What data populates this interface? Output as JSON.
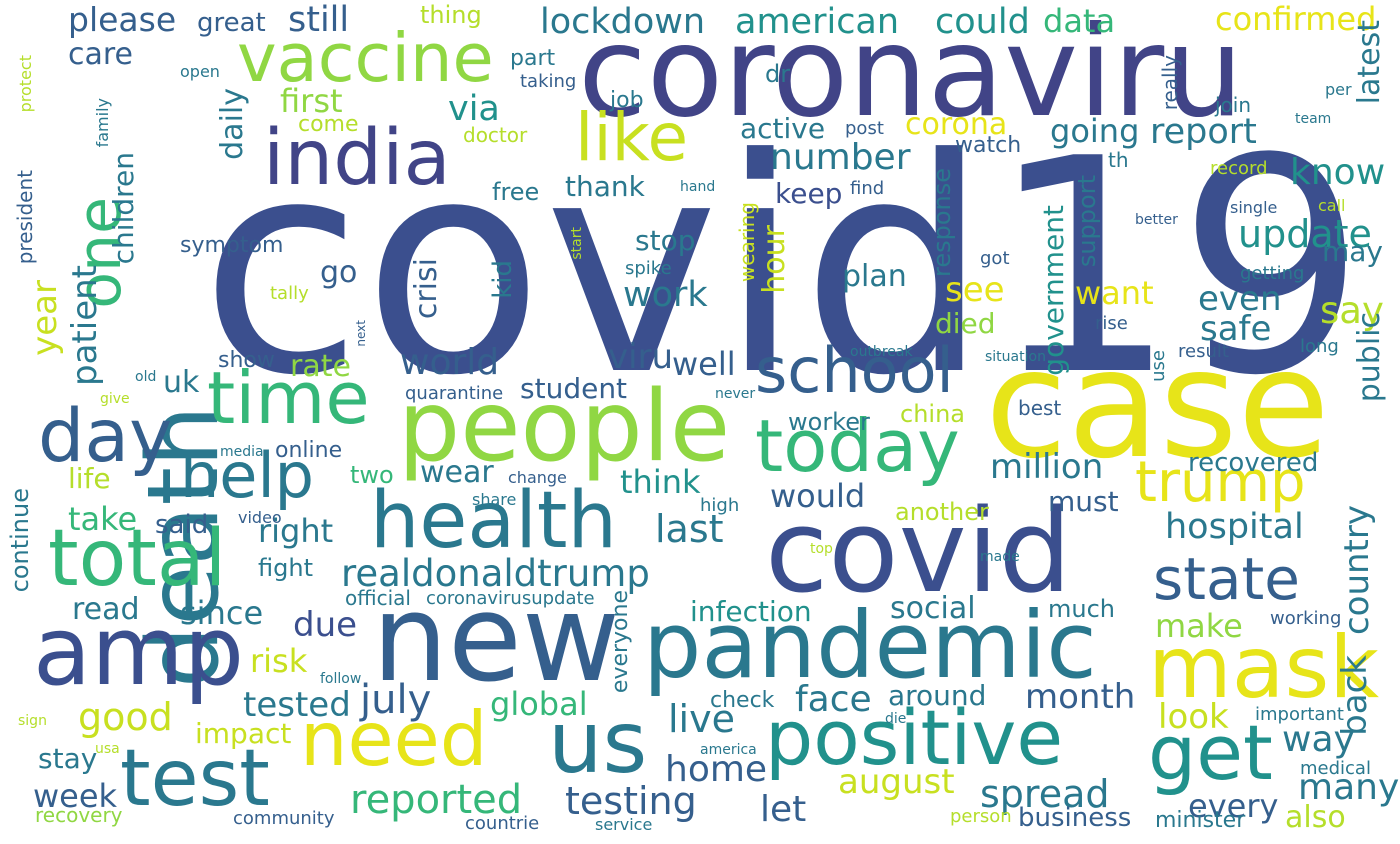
{
  "palette": {
    "navy": "#3b4f8e",
    "indigo": "#414487",
    "blue": "#355f8d",
    "teal": "#2a788e",
    "teal_green": "#21918c",
    "green": "#35b779",
    "lime": "#90d743",
    "yellow": "#e7e419"
  },
  "words": [
    {
      "id": "covid19",
      "text": "covid19",
      "color": "#3b4f8e"
    },
    {
      "id": "coronaviru",
      "text": "coronaviru",
      "color": "#414487"
    },
    {
      "id": "case",
      "text": "case",
      "color": "#e7e419"
    },
    {
      "id": "new",
      "text": "new",
      "color": "#355f8d"
    },
    {
      "id": "covid",
      "text": "covid",
      "color": "#3b4f8e"
    },
    {
      "id": "death",
      "text": "death",
      "color": "#2a788e"
    },
    {
      "id": "people",
      "text": "people",
      "color": "#90d743"
    },
    {
      "id": "pandemic",
      "text": "pandemic",
      "color": "#2a788e"
    },
    {
      "id": "amp",
      "text": "amp",
      "color": "#3b4f8e"
    },
    {
      "id": "positive",
      "text": "positive",
      "color": "#21918c"
    },
    {
      "id": "health",
      "text": "health",
      "color": "#2a788e"
    },
    {
      "id": "mask",
      "text": "mask",
      "color": "#e7e419"
    },
    {
      "id": "today",
      "text": "today",
      "color": "#35b779"
    },
    {
      "id": "india",
      "text": "india",
      "color": "#414487"
    },
    {
      "id": "time",
      "text": "time",
      "color": "#35b779"
    },
    {
      "id": "total",
      "text": "total",
      "color": "#35b779"
    },
    {
      "id": "us",
      "text": "us",
      "color": "#2a788e"
    },
    {
      "id": "need",
      "text": "need",
      "color": "#e7e419"
    },
    {
      "id": "test",
      "text": "test",
      "color": "#2a788e"
    },
    {
      "id": "get",
      "text": "get",
      "color": "#21918c"
    },
    {
      "id": "vaccine",
      "text": "vaccine",
      "color": "#90d743"
    },
    {
      "id": "like",
      "text": "like",
      "color": "#c8e020"
    },
    {
      "id": "school",
      "text": "school",
      "color": "#355f8d"
    },
    {
      "id": "day",
      "text": "day",
      "color": "#355f8d"
    },
    {
      "id": "one",
      "text": "one",
      "color": "#35b779"
    },
    {
      "id": "trump",
      "text": "trump",
      "color": "#e7e419"
    },
    {
      "id": "state",
      "text": "state",
      "color": "#355f8d"
    },
    {
      "id": "help",
      "text": "help",
      "color": "#2a788e"
    },
    {
      "id": "realdonaldtrump",
      "text": "realdonaldtrump",
      "color": "#2a788e"
    },
    {
      "id": "lockdown",
      "text": "lockdown",
      "color": "#2a788e"
    },
    {
      "id": "american",
      "text": "american",
      "color": "#21918c"
    },
    {
      "id": "please",
      "text": "please",
      "color": "#355f8d"
    },
    {
      "id": "still",
      "text": "still",
      "color": "#355f8d"
    },
    {
      "id": "could",
      "text": "could",
      "color": "#21918c"
    },
    {
      "id": "data",
      "text": "data",
      "color": "#35b779"
    },
    {
      "id": "confirmed",
      "text": "confirmed",
      "color": "#e7e419"
    },
    {
      "id": "great",
      "text": "great",
      "color": "#355f8d"
    },
    {
      "id": "thing",
      "text": "thing",
      "color": "#b5de2b"
    },
    {
      "id": "care",
      "text": "care",
      "color": "#355f8d"
    },
    {
      "id": "first",
      "text": "first",
      "color": "#90d743"
    },
    {
      "id": "via",
      "text": "via",
      "color": "#21918c"
    },
    {
      "id": "report",
      "text": "report",
      "color": "#2a788e"
    },
    {
      "id": "number",
      "text": "number",
      "color": "#2a788e"
    },
    {
      "id": "corona",
      "text": "corona",
      "color": "#e7e419"
    },
    {
      "id": "active",
      "text": "active",
      "color": "#2a788e"
    },
    {
      "id": "going",
      "text": "going",
      "color": "#2a788e"
    },
    {
      "id": "thank",
      "text": "thank",
      "color": "#2a788e"
    },
    {
      "id": "keep",
      "text": "keep",
      "color": "#3b4f8e"
    },
    {
      "id": "free",
      "text": "free",
      "color": "#2a788e"
    },
    {
      "id": "daily",
      "text": "daily",
      "color": "#2a788e"
    },
    {
      "id": "know",
      "text": "know",
      "color": "#21918c"
    },
    {
      "id": "update",
      "text": "update",
      "color": "#21918c"
    },
    {
      "id": "latest",
      "text": "latest",
      "color": "#2a788e"
    },
    {
      "id": "may",
      "text": "may",
      "color": "#2a788e"
    },
    {
      "id": "children",
      "text": "children",
      "color": "#2a788e"
    },
    {
      "id": "symptom",
      "text": "symptom",
      "color": "#355f8d"
    },
    {
      "id": "stop",
      "text": "stop",
      "color": "#2a788e"
    },
    {
      "id": "work",
      "text": "work",
      "color": "#2a788e"
    },
    {
      "id": "hour",
      "text": "hour",
      "color": "#c8e020"
    },
    {
      "id": "plan",
      "text": "plan",
      "color": "#2a788e"
    },
    {
      "id": "see",
      "text": "see",
      "color": "#e7e419"
    },
    {
      "id": "want",
      "text": "want",
      "color": "#e7e419"
    },
    {
      "id": "government",
      "text": "government",
      "color": "#21918c"
    },
    {
      "id": "support",
      "text": "support",
      "color": "#2a788e"
    },
    {
      "id": "even",
      "text": "even",
      "color": "#2a788e"
    },
    {
      "id": "say",
      "text": "say",
      "color": "#b5de2b"
    },
    {
      "id": "safe",
      "text": "safe",
      "color": "#2a788e"
    },
    {
      "id": "go",
      "text": "go",
      "color": "#355f8d"
    },
    {
      "id": "year",
      "text": "year",
      "color": "#c8e020"
    },
    {
      "id": "patient",
      "text": "patient",
      "color": "#2a788e"
    },
    {
      "id": "crisi",
      "text": "crisi",
      "color": "#355f8d"
    },
    {
      "id": "kid",
      "text": "kid",
      "color": "#2a788e"
    },
    {
      "id": "died",
      "text": "died",
      "color": "#90d743"
    },
    {
      "id": "world",
      "text": "world",
      "color": "#355f8d"
    },
    {
      "id": "viru",
      "text": "viru",
      "color": "#355f8d"
    },
    {
      "id": "well",
      "text": "well",
      "color": "#355f8d"
    },
    {
      "id": "rate",
      "text": "rate",
      "color": "#90d743"
    },
    {
      "id": "uk",
      "text": "uk",
      "color": "#2a788e"
    },
    {
      "id": "show",
      "text": "show",
      "color": "#355f8d"
    },
    {
      "id": "student",
      "text": "student",
      "color": "#355f8d"
    },
    {
      "id": "public",
      "text": "public",
      "color": "#2a788e"
    },
    {
      "id": "million",
      "text": "million",
      "color": "#2a788e"
    },
    {
      "id": "wear",
      "text": "wear",
      "color": "#2a788e"
    },
    {
      "id": "two",
      "text": "two",
      "color": "#35b779"
    },
    {
      "id": "think",
      "text": "think",
      "color": "#21918c"
    },
    {
      "id": "worker",
      "text": "worker",
      "color": "#2a788e"
    },
    {
      "id": "china",
      "text": "china",
      "color": "#b5de2b"
    },
    {
      "id": "recovered",
      "text": "recovered",
      "color": "#2a788e"
    },
    {
      "id": "best",
      "text": "best",
      "color": "#355f8d"
    },
    {
      "id": "online",
      "text": "online",
      "color": "#355f8d"
    },
    {
      "id": "life",
      "text": "life",
      "color": "#b5de2b"
    },
    {
      "id": "would",
      "text": "would",
      "color": "#355f8d"
    },
    {
      "id": "take",
      "text": "take",
      "color": "#35b779"
    },
    {
      "id": "said",
      "text": "said",
      "color": "#355f8d"
    },
    {
      "id": "right",
      "text": "right",
      "color": "#2a788e"
    },
    {
      "id": "last",
      "text": "last",
      "color": "#2a788e"
    },
    {
      "id": "must",
      "text": "must",
      "color": "#355f8d"
    },
    {
      "id": "another",
      "text": "another",
      "color": "#b5de2b"
    },
    {
      "id": "hospital",
      "text": "hospital",
      "color": "#2a788e"
    },
    {
      "id": "country",
      "text": "country",
      "color": "#2a788e"
    },
    {
      "id": "continue",
      "text": "continue",
      "color": "#2a788e"
    },
    {
      "id": "fight",
      "text": "fight",
      "color": "#2a788e"
    },
    {
      "id": "official",
      "text": "official",
      "color": "#2a788e"
    },
    {
      "id": "coronavirusupdate",
      "text": "coronavirusupdate",
      "color": "#2a788e"
    },
    {
      "id": "read",
      "text": "read",
      "color": "#2a788e"
    },
    {
      "id": "since",
      "text": "since",
      "color": "#2a788e"
    },
    {
      "id": "due",
      "text": "due",
      "color": "#3b4f8e"
    },
    {
      "id": "infection",
      "text": "infection",
      "color": "#21918c"
    },
    {
      "id": "social",
      "text": "social",
      "color": "#2a788e"
    },
    {
      "id": "much",
      "text": "much",
      "color": "#2a788e"
    },
    {
      "id": "make",
      "text": "make",
      "color": "#90d743"
    },
    {
      "id": "back",
      "text": "back",
      "color": "#2a788e"
    },
    {
      "id": "risk",
      "text": "risk",
      "color": "#c8e020"
    },
    {
      "id": "tested",
      "text": "tested",
      "color": "#2a788e"
    },
    {
      "id": "july",
      "text": "july",
      "color": "#355f8d"
    },
    {
      "id": "global",
      "text": "global",
      "color": "#35b779"
    },
    {
      "id": "face",
      "text": "face",
      "color": "#2a788e"
    },
    {
      "id": "around",
      "text": "around",
      "color": "#2a788e"
    },
    {
      "id": "month",
      "text": "month",
      "color": "#355f8d"
    },
    {
      "id": "good",
      "text": "good",
      "color": "#c8e020"
    },
    {
      "id": "impact",
      "text": "impact",
      "color": "#c8e020"
    },
    {
      "id": "live",
      "text": "live",
      "color": "#2a788e"
    },
    {
      "id": "look",
      "text": "look",
      "color": "#c8e020"
    },
    {
      "id": "way",
      "text": "way",
      "color": "#2a788e"
    },
    {
      "id": "important",
      "text": "important",
      "color": "#2a788e"
    },
    {
      "id": "everyone",
      "text": "everyone",
      "color": "#2a788e"
    },
    {
      "id": "check",
      "text": "check",
      "color": "#2a788e"
    },
    {
      "id": "stay",
      "text": "stay",
      "color": "#2a788e"
    },
    {
      "id": "home",
      "text": "home",
      "color": "#355f8d"
    },
    {
      "id": "week",
      "text": "week",
      "color": "#355f8d"
    },
    {
      "id": "reported",
      "text": "reported",
      "color": "#35b779"
    },
    {
      "id": "testing",
      "text": "testing",
      "color": "#355f8d"
    },
    {
      "id": "august",
      "text": "august",
      "color": "#c8e020"
    },
    {
      "id": "spread",
      "text": "spread",
      "color": "#2a788e"
    },
    {
      "id": "let",
      "text": "let",
      "color": "#355f8d"
    },
    {
      "id": "every",
      "text": "every",
      "color": "#355f8d"
    },
    {
      "id": "many",
      "text": "many",
      "color": "#2a788e"
    },
    {
      "id": "medical",
      "text": "medical",
      "color": "#2a788e"
    },
    {
      "id": "business",
      "text": "business",
      "color": "#355f8d"
    },
    {
      "id": "minister",
      "text": "minister",
      "color": "#2a788e"
    },
    {
      "id": "also",
      "text": "also",
      "color": "#b5de2b"
    },
    {
      "id": "community",
      "text": "community",
      "color": "#355f8d"
    },
    {
      "id": "countrie",
      "text": "countrie",
      "color": "#355f8d"
    },
    {
      "id": "service",
      "text": "service",
      "color": "#2a788e"
    },
    {
      "id": "person",
      "text": "person",
      "color": "#b5de2b"
    },
    {
      "id": "recovery",
      "text": "recovery",
      "color": "#90d743"
    },
    {
      "id": "part",
      "text": "part",
      "color": "#2a788e"
    },
    {
      "id": "taking",
      "text": "taking",
      "color": "#355f8d"
    },
    {
      "id": "job",
      "text": "job",
      "color": "#2a788e"
    },
    {
      "id": "dr",
      "text": "dr",
      "color": "#2a788e"
    },
    {
      "id": "really",
      "text": "really",
      "color": "#355f8d"
    },
    {
      "id": "join",
      "text": "join",
      "color": "#2a788e"
    },
    {
      "id": "per",
      "text": "per",
      "color": "#2a788e"
    },
    {
      "id": "team",
      "text": "team",
      "color": "#2a788e"
    },
    {
      "id": "post",
      "text": "post",
      "color": "#355f8d"
    },
    {
      "id": "watch",
      "text": "watch",
      "color": "#355f8d"
    },
    {
      "id": "th",
      "text": "th",
      "color": "#2a788e"
    },
    {
      "id": "record",
      "text": "record",
      "color": "#b5de2b"
    },
    {
      "id": "find",
      "text": "find",
      "color": "#355f8d"
    },
    {
      "id": "hand",
      "text": "hand",
      "color": "#2a788e"
    },
    {
      "id": "better",
      "text": "better",
      "color": "#355f8d"
    },
    {
      "id": "single",
      "text": "single",
      "color": "#355f8d"
    },
    {
      "id": "call",
      "text": "call",
      "color": "#b5de2b"
    },
    {
      "id": "response",
      "text": "response",
      "color": "#2a788e"
    },
    {
      "id": "got",
      "text": "got",
      "color": "#355f8d"
    },
    {
      "id": "getting",
      "text": "getting",
      "color": "#2a788e"
    },
    {
      "id": "spike",
      "text": "spike",
      "color": "#2a788e"
    },
    {
      "id": "wearing",
      "text": "wearing",
      "color": "#c8e020"
    },
    {
      "id": "tally",
      "text": "tally",
      "color": "#b5de2b"
    },
    {
      "id": "rise",
      "text": "rise",
      "color": "#355f8d"
    },
    {
      "id": "outbreak",
      "text": "outbreak",
      "color": "#2a788e"
    },
    {
      "id": "situation",
      "text": "situation",
      "color": "#2a788e"
    },
    {
      "id": "result",
      "text": "result",
      "color": "#355f8d"
    },
    {
      "id": "long",
      "text": "long",
      "color": "#2a788e"
    },
    {
      "id": "use",
      "text": "use",
      "color": "#2a788e"
    },
    {
      "id": "quarantine",
      "text": "quarantine",
      "color": "#355f8d"
    },
    {
      "id": "never",
      "text": "never",
      "color": "#2a788e"
    },
    {
      "id": "next",
      "text": "next",
      "color": "#355f8d"
    },
    {
      "id": "old",
      "text": "old",
      "color": "#2a788e"
    },
    {
      "id": "give",
      "text": "give",
      "color": "#b5de2b"
    },
    {
      "id": "media",
      "text": "media",
      "color": "#2a788e"
    },
    {
      "id": "change",
      "text": "change",
      "color": "#355f8d"
    },
    {
      "id": "share",
      "text": "share",
      "color": "#2a788e"
    },
    {
      "id": "video",
      "text": "video",
      "color": "#355f8d"
    },
    {
      "id": "high",
      "text": "high",
      "color": "#2a788e"
    },
    {
      "id": "top",
      "text": "top",
      "color": "#b5de2b"
    },
    {
      "id": "made",
      "text": "made",
      "color": "#2a788e"
    },
    {
      "id": "die",
      "text": "die",
      "color": "#2a788e"
    },
    {
      "id": "america",
      "text": "america",
      "color": "#2a788e"
    },
    {
      "id": "usa",
      "text": "usa",
      "color": "#b5de2b"
    },
    {
      "id": "sign",
      "text": "sign",
      "color": "#b5de2b"
    },
    {
      "id": "follow",
      "text": "follow",
      "color": "#2a788e"
    },
    {
      "id": "working",
      "text": "working",
      "color": "#355f8d"
    },
    {
      "id": "protect",
      "text": "protect",
      "color": "#b5de2b"
    },
    {
      "id": "open",
      "text": "open",
      "color": "#2a788e"
    },
    {
      "id": "family",
      "text": "family",
      "color": "#2a788e"
    },
    {
      "id": "come",
      "text": "come",
      "color": "#b5de2b"
    },
    {
      "id": "doctor",
      "text": "doctor",
      "color": "#b5de2b"
    },
    {
      "id": "president",
      "text": "president",
      "color": "#355f8d"
    },
    {
      "id": "start",
      "text": "start",
      "color": "#b5de2b"
    }
  ]
}
